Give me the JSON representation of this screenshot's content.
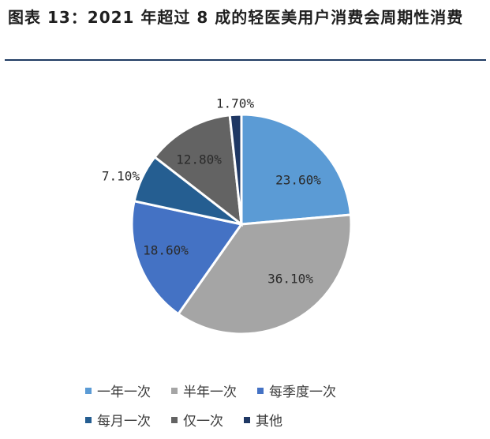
{
  "title": "图表 13：2021 年超过 8 成的轻医美用户消费会周期性消费",
  "chart_data": {
    "type": "pie",
    "series": [
      {
        "label": "一年一次",
        "value": 23.6,
        "display": "23.60%",
        "color": "#5b9bd5"
      },
      {
        "label": "半年一次",
        "value": 36.1,
        "display": "36.10%",
        "color": "#a5a5a5"
      },
      {
        "label": "每季度一次",
        "value": 18.6,
        "display": "18.60%",
        "color": "#4472c4"
      },
      {
        "label": "每月一次",
        "value": 7.1,
        "display": "7.10%",
        "color": "#255e91"
      },
      {
        "label": "仅一次",
        "value": 12.8,
        "display": "12.80%",
        "color": "#636363"
      },
      {
        "label": "其他",
        "value": 1.7,
        "display": "1.70%",
        "color": "#1f3864"
      }
    ],
    "legend_position": "bottom",
    "start_angle_deg": 0,
    "direction": "clockwise"
  }
}
